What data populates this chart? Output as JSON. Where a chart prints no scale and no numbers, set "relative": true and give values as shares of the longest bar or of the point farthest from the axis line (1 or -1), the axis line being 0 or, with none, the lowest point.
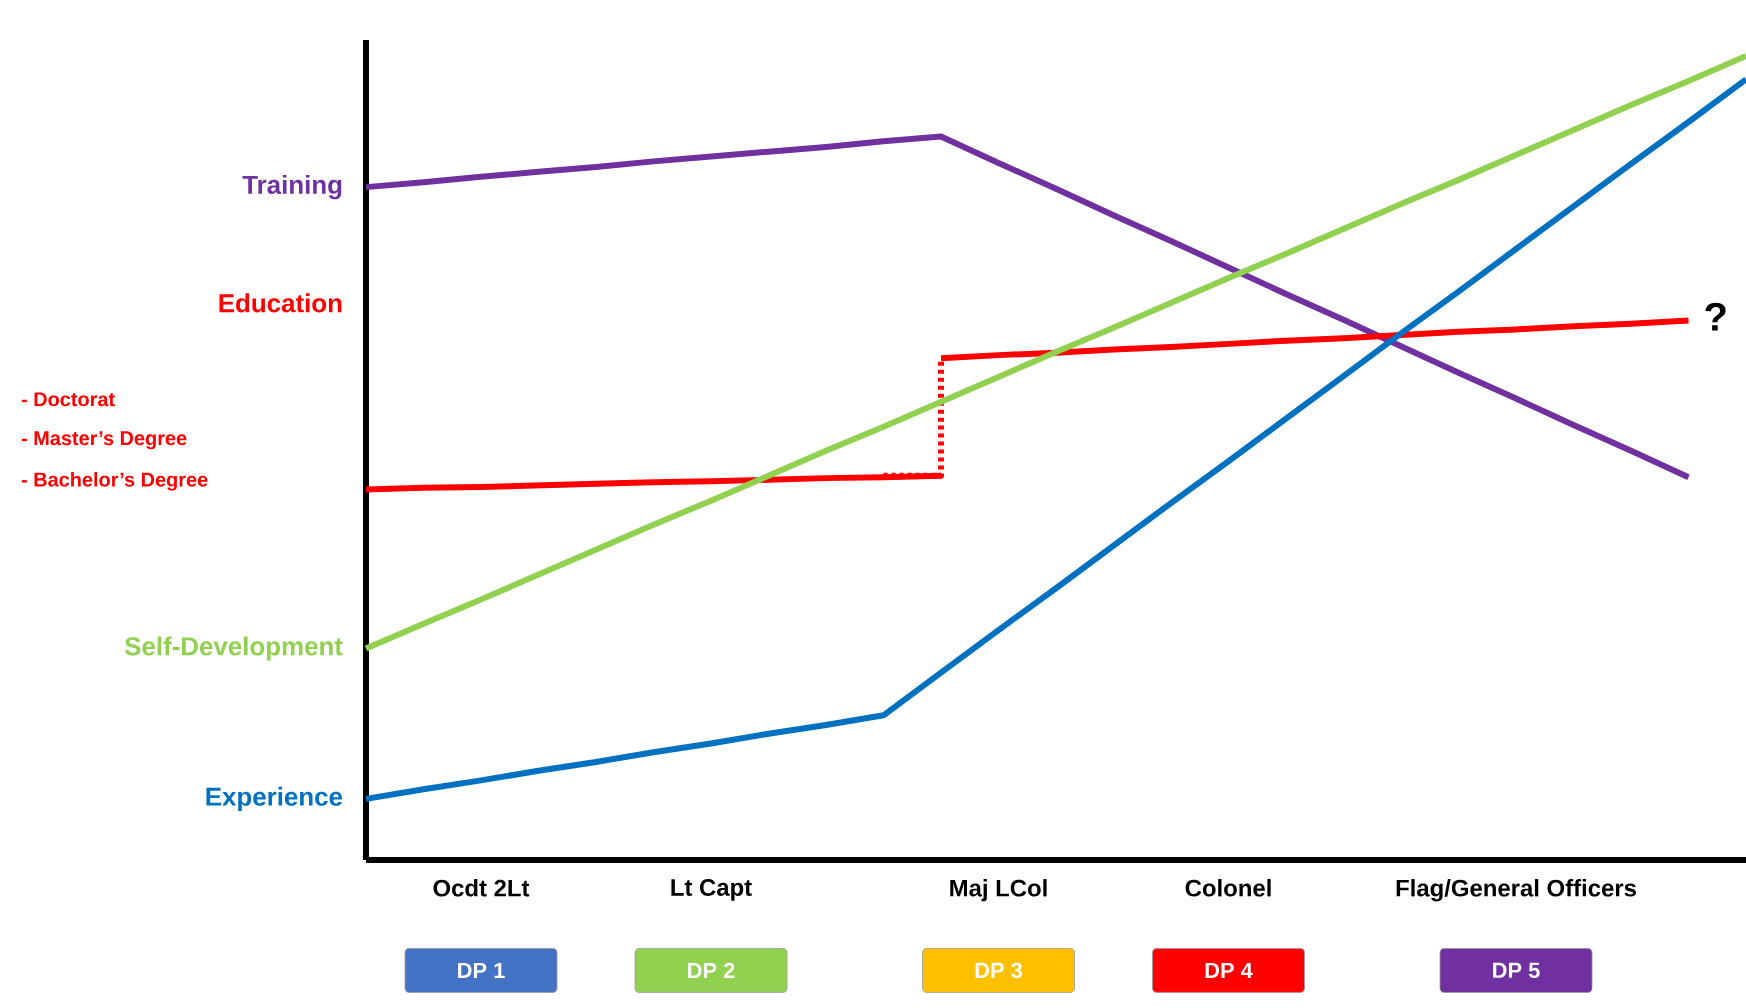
{
  "chart_data": {
    "type": "line",
    "relative": true,
    "categories": [
      null,
      null,
      "Ocdt 2Lt",
      null,
      null,
      null,
      "Lt Capt",
      null,
      null,
      null,
      null,
      "Maj LCol",
      null,
      null,
      null,
      "Colonel",
      null,
      null,
      null,
      null,
      "Flag/General Officers",
      null,
      null,
      null,
      null
    ],
    "series": [
      {
        "type": "step",
        "color": "#ff0000",
        "line_style": "dotted",
        "values": [
          null,
          null,
          null,
          null,
          null,
          null,
          null,
          null,
          null,
          0.478,
          0.624,
          null,
          null,
          null,
          null,
          null,
          null,
          null,
          null,
          null,
          null,
          null,
          null,
          null,
          null
        ]
      },
      {
        "name": "Training",
        "color": "#7030a0",
        "values": [
          0.837,
          0.843,
          0.85,
          0.856,
          0.862,
          0.869,
          0.875,
          0.881,
          0.887,
          0.894,
          0.9,
          0.867,
          0.835,
          0.802,
          0.77,
          0.737,
          0.704,
          0.672,
          0.639,
          0.606,
          0.574,
          0.541,
          0.509,
          0.476,
          null
        ]
      },
      {
        "name": "Education",
        "color": "#ff0000",
        "values": [
          0.461,
          0.463,
          0.464,
          0.466,
          0.468,
          0.47,
          0.471,
          0.473,
          0.475,
          0.476,
          0.478,
          null,
          null,
          null,
          null,
          null,
          null,
          null,
          null,
          null,
          null,
          null,
          null,
          null,
          null
        ]
      },
      {
        "color": "#ff0000",
        "values": [
          null,
          null,
          null,
          null,
          null,
          null,
          null,
          null,
          null,
          null,
          0.624,
          0.628,
          0.631,
          0.635,
          0.638,
          0.642,
          0.646,
          0.649,
          0.653,
          0.657,
          0.66,
          0.664,
          0.667,
          0.671,
          null
        ]
      },
      {
        "name": "Self-Development",
        "color": "#92d050",
        "values": [
          0.263,
          0.294,
          0.324,
          0.355,
          0.386,
          0.417,
          0.447,
          0.478,
          0.509,
          0.539,
          0.57,
          0.601,
          0.632,
          0.662,
          0.693,
          0.724,
          0.754,
          0.785,
          0.816,
          0.846,
          0.877,
          0.908,
          0.939,
          0.969,
          1.0
        ]
      },
      {
        "name": "Experience",
        "color": "#0070c0",
        "values": [
          0.076,
          0.088,
          0.099,
          0.111,
          0.122,
          0.134,
          0.145,
          0.157,
          0.168,
          0.18,
          0.233,
          0.286,
          0.338,
          0.391,
          0.444,
          0.496,
          0.549,
          0.602,
          0.655,
          0.707,
          0.76,
          0.813,
          0.866,
          0.918,
          0.971
        ]
      }
    ],
    "annotations": [
      "- Doctorat",
      "- Master’s Degree",
      "- Bachelor’s Degree",
      "?",
      "DP 1",
      "DP 2",
      "DP 3",
      "DP 4",
      "DP 5"
    ]
  }
}
